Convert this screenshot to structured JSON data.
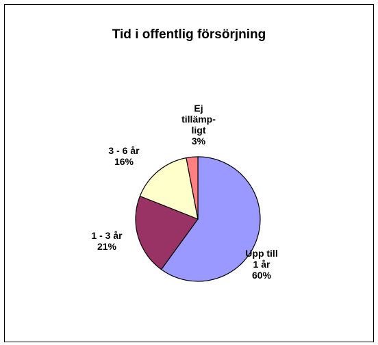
{
  "chart_data": {
    "type": "pie",
    "title": "Tid i offentlig försörjning",
    "categories": [
      "Upp till\n1 år",
      "1 - 3 år",
      "3 - 6 år",
      "Ej\ntillämp-\nligt"
    ],
    "values": [
      60,
      21,
      16,
      3
    ],
    "value_labels": [
      "60%",
      "21%",
      "16%",
      "3%"
    ],
    "colors": [
      "#9999ff",
      "#993366",
      "#ffffcc",
      "#ff8080"
    ]
  }
}
